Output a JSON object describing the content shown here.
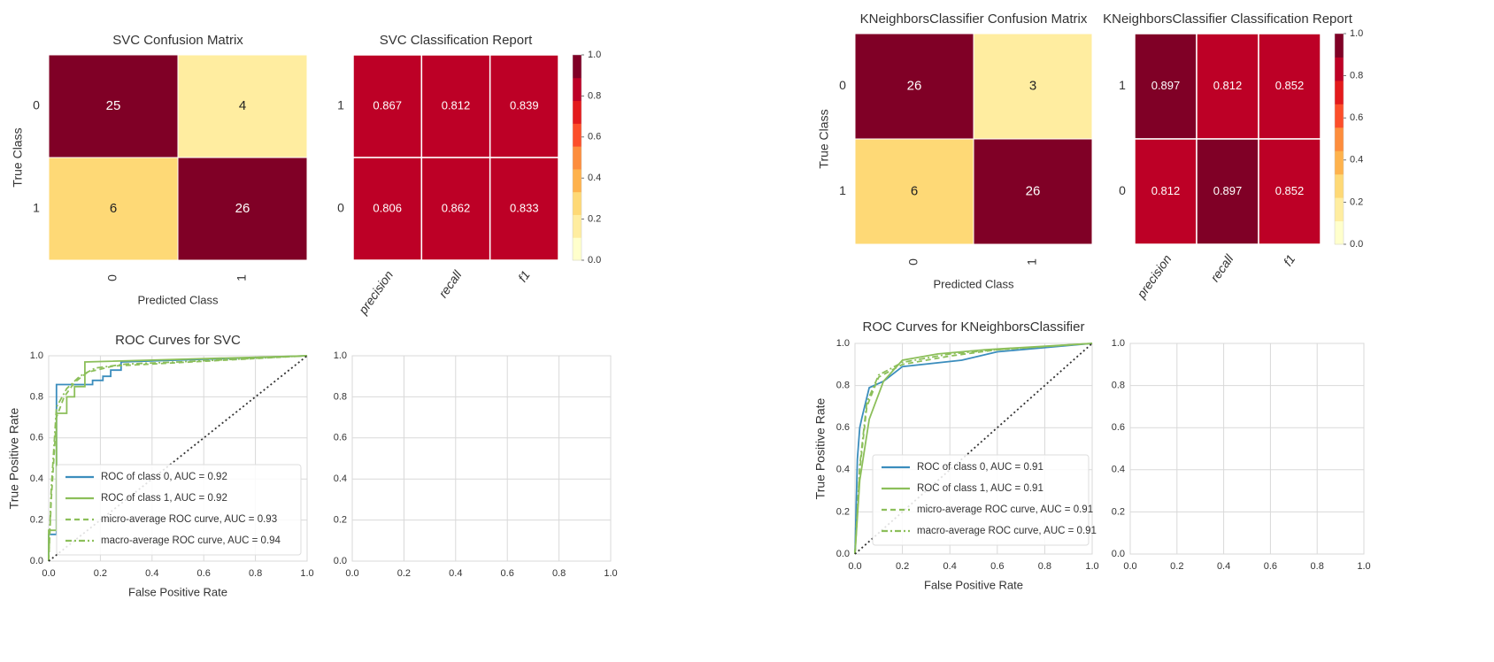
{
  "colors": {
    "blue": "#3b8dbd",
    "green": "#8cbf5a",
    "diag": "#333333",
    "grid": "#d9d9d9",
    "cmap": [
      "#ffffcc",
      "#ffeda0",
      "#fed976",
      "#feb24c",
      "#fd8d3c",
      "#fc4e2a",
      "#e31a1c",
      "#bd0026",
      "#800026"
    ]
  },
  "chart_data": [
    {
      "type": "heatmap",
      "title": "SVC Confusion Matrix",
      "xlabel": "Predicted Class",
      "ylabel": "True Class",
      "x_ticks": [
        "0",
        "1"
      ],
      "y_ticks": [
        "0",
        "1"
      ],
      "values": [
        [
          25,
          4
        ],
        [
          6,
          26
        ]
      ]
    },
    {
      "type": "heatmap",
      "title": "SVC Classification Report",
      "x_ticks": [
        "precision",
        "recall",
        "f1"
      ],
      "y_ticks": [
        "1",
        "0"
      ],
      "values": [
        [
          0.867,
          0.812,
          0.839
        ],
        [
          0.806,
          0.862,
          0.833
        ]
      ],
      "colorbar": {
        "min": 0.0,
        "max": 1.0,
        "ticks": [
          "0.0",
          "0.2",
          "0.4",
          "0.6",
          "0.8",
          "1.0"
        ]
      }
    },
    {
      "type": "line",
      "title": "ROC Curves for SVC",
      "xlabel": "False Positive Rate",
      "ylabel": "True Positive Rate",
      "xlim": [
        0,
        1
      ],
      "ylim": [
        0,
        1
      ],
      "x_ticks": [
        "0.0",
        "0.2",
        "0.4",
        "0.6",
        "0.8",
        "1.0"
      ],
      "y_ticks": [
        "0.0",
        "0.2",
        "0.4",
        "0.6",
        "0.8",
        "1.0"
      ],
      "series": [
        {
          "name": "ROC of class 0, AUC = 0.92",
          "style": "solid",
          "color": "blue",
          "x": [
            0,
            0,
            0.03,
            0.03,
            0.17,
            0.17,
            0.21,
            0.21,
            0.24,
            0.24,
            0.28,
            0.28,
            1.0
          ],
          "y": [
            0,
            0.13,
            0.13,
            0.86,
            0.86,
            0.88,
            0.88,
            0.9,
            0.9,
            0.93,
            0.93,
            0.97,
            1.0
          ]
        },
        {
          "name": "ROC of class 1, AUC = 0.92",
          "style": "solid",
          "color": "green",
          "x": [
            0,
            0,
            0.03,
            0.03,
            0.07,
            0.07,
            0.1,
            0.1,
            0.14,
            0.14,
            1.0
          ],
          "y": [
            0,
            0.15,
            0.15,
            0.72,
            0.72,
            0.8,
            0.8,
            0.85,
            0.85,
            0.97,
            1.0
          ]
        },
        {
          "name": "micro-average ROC curve, AUC = 0.93",
          "style": "dashed",
          "color": "green",
          "x": [
            0,
            0.01,
            0.03,
            0.06,
            0.1,
            0.15,
            0.25,
            0.4,
            1.0
          ],
          "y": [
            0,
            0.3,
            0.7,
            0.8,
            0.87,
            0.92,
            0.95,
            0.96,
            1.0
          ]
        },
        {
          "name": "macro-average ROC curve, AUC = 0.94",
          "style": "dashdot",
          "color": "green",
          "x": [
            0,
            0.01,
            0.03,
            0.07,
            0.12,
            0.18,
            0.3,
            0.5,
            1.0
          ],
          "y": [
            0,
            0.35,
            0.75,
            0.84,
            0.9,
            0.94,
            0.96,
            0.97,
            1.0
          ]
        },
        {
          "name": "",
          "style": "dotted",
          "color": "diag",
          "x": [
            0,
            1
          ],
          "y": [
            0,
            1
          ]
        }
      ]
    },
    {
      "type": "line",
      "title": "",
      "xlim": [
        0,
        1
      ],
      "ylim": [
        0,
        1
      ],
      "x_ticks": [
        "0.0",
        "0.2",
        "0.4",
        "0.6",
        "0.8",
        "1.0"
      ],
      "y_ticks": [
        "0.0",
        "0.2",
        "0.4",
        "0.6",
        "0.8",
        "1.0"
      ],
      "series": []
    },
    {
      "type": "heatmap",
      "title": "KNeighborsClassifier Confusion Matrix",
      "xlabel": "Predicted Class",
      "ylabel": "True Class",
      "x_ticks": [
        "0",
        "1"
      ],
      "y_ticks": [
        "0",
        "1"
      ],
      "values": [
        [
          26,
          3
        ],
        [
          6,
          26
        ]
      ]
    },
    {
      "type": "heatmap",
      "title": "KNeighborsClassifier Classification Report",
      "x_ticks": [
        "precision",
        "recall",
        "f1"
      ],
      "y_ticks": [
        "1",
        "0"
      ],
      "values": [
        [
          0.897,
          0.812,
          0.852
        ],
        [
          0.812,
          0.897,
          0.852
        ]
      ],
      "colorbar": {
        "min": 0.0,
        "max": 1.0,
        "ticks": [
          "0.0",
          "0.2",
          "0.4",
          "0.6",
          "0.8",
          "1.0"
        ]
      }
    },
    {
      "type": "line",
      "title": "ROC Curves for KNeighborsClassifier",
      "xlabel": "False Positive Rate",
      "ylabel": "True Positive Rate",
      "xlim": [
        0,
        1
      ],
      "ylim": [
        0,
        1
      ],
      "x_ticks": [
        "0.0",
        "0.2",
        "0.4",
        "0.6",
        "0.8",
        "1.0"
      ],
      "y_ticks": [
        "0.0",
        "0.2",
        "0.4",
        "0.6",
        "0.8",
        "1.0"
      ],
      "series": [
        {
          "name": "ROC of class 0, AUC = 0.91",
          "style": "solid",
          "color": "blue",
          "x": [
            0,
            0.01,
            0.02,
            0.03,
            0.06,
            0.12,
            0.2,
            0.45,
            0.6,
            1.0
          ],
          "y": [
            0,
            0.45,
            0.6,
            0.65,
            0.79,
            0.82,
            0.89,
            0.92,
            0.96,
            1.0
          ]
        },
        {
          "name": "ROC of class 1, AUC = 0.91",
          "style": "solid",
          "color": "green",
          "x": [
            0,
            0.02,
            0.06,
            0.12,
            0.2,
            0.35,
            0.55,
            1.0
          ],
          "y": [
            0,
            0.35,
            0.64,
            0.82,
            0.92,
            0.95,
            0.97,
            1.0
          ]
        },
        {
          "name": "micro-average ROC curve, AUC = 0.91",
          "style": "dashed",
          "color": "green",
          "x": [
            0,
            0.02,
            0.05,
            0.1,
            0.2,
            0.4,
            0.6,
            1.0
          ],
          "y": [
            0,
            0.4,
            0.7,
            0.84,
            0.9,
            0.94,
            0.97,
            1.0
          ]
        },
        {
          "name": "macro-average ROC curve, AUC = 0.91",
          "style": "dashdot",
          "color": "green",
          "x": [
            0,
            0.02,
            0.05,
            0.1,
            0.2,
            0.4,
            0.6,
            1.0
          ],
          "y": [
            0,
            0.42,
            0.72,
            0.85,
            0.91,
            0.95,
            0.97,
            1.0
          ]
        },
        {
          "name": "",
          "style": "dotted",
          "color": "diag",
          "x": [
            0,
            1
          ],
          "y": [
            0,
            1
          ]
        }
      ]
    },
    {
      "type": "line",
      "title": "",
      "xlim": [
        0,
        1
      ],
      "ylim": [
        0,
        1
      ],
      "x_ticks": [
        "0.0",
        "0.2",
        "0.4",
        "0.6",
        "0.8",
        "1.0"
      ],
      "y_ticks": [
        "0.0",
        "0.2",
        "0.4",
        "0.6",
        "0.8",
        "1.0"
      ],
      "series": []
    }
  ]
}
